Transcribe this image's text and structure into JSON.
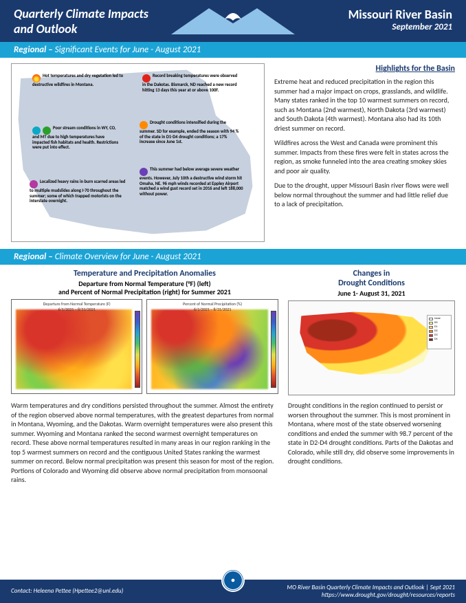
{
  "header": {
    "title_left_l1": "Quarterly Climate Impacts",
    "title_left_l2": "and Outlook",
    "title_right": "Missouri River Basin",
    "date": "September 2021"
  },
  "section1": {
    "label_bold": "Regional –",
    "label_rest": " Significant Events for June - August 2021"
  },
  "callouts": {
    "c1": "Hot temperatures and dry vegetation led to destructive wildfires in Montana.",
    "c2": "Record breaking temperatures were observed in the Dakotas. Bismarck, ND reached a new record hitting 13 days this year at or above 100F.",
    "c3": "Poor stream conditions in WY, CO, and MT due to high temperatures have impacted fish habitats and health. Restrictions were put into effect.",
    "c4": "Drought conditions intensified during the summer. SD for example, ended the season with 94 % of the state in D1-D4 drought conditions; a 17% increase since June 1st.",
    "c5": "Localized heavy rains in burn scarred areas led to multiple mudslides along I-70 throughout the summer; some of which trapped motorists on the interstate overnight.",
    "c6": "This summer had below average severe weather events. However, July 10th a destructive wind storm hit Omaha, NE. 96 mph winds recorded at Eppley Airport matched a wind gust record set in 2016 and left 188,000 without power."
  },
  "highlights": {
    "title": "Highlights for the Basin",
    "p1": "Extreme heat and reduced precipitation in the region this summer had a major impact on crops, grasslands, and wildlife. Many states ranked in the top 10 warmest summers on record, such as Montana (2nd warmest), North Dakota (3rd warmest) and South Dakota (4th warmest). Montana also had its 10th driest summer on record.",
    "p2": "Wildfires across the West and Canada were prominent this summer. Impacts from these fires were felt in states across the region, as smoke funneled into the area creating smokey skies and poor air quality.",
    "p3": "Due to the drought, upper Missouri Basin river flows were well below normal throughout the summer and had little relief due to a lack of precipitation."
  },
  "section2": {
    "label_bold": "Regional –",
    "label_rest": " Climate Overview for June - August 2021"
  },
  "overview": {
    "anom_title": "Temperature and Precipitation Anomalies",
    "anom_sub": "Departure from Normal Temperature (°F) (left)\nand Percent of Normal Precipitation (right) for Summer 2021",
    "map_temp_title": "Departure from Normal Temperature (F)\n6/1/2021 – 8/31/2021",
    "map_precip_title": "Percent of Normal Precipitation (%)\n6/1/2021 – 8/31/2021",
    "drought_title": "Changes in\nDrought Conditions",
    "drought_sub": "June 1- August 31, 2021",
    "text_left": "Warm temperatures and dry conditions persisted throughout the summer. Almost the entirety of the region observed above normal temperatures, with the greatest departures from normal in Montana, Wyoming, and the Dakotas. Warm overnight temperatures were also present this summer. Wyoming and Montana ranked the second warmest overnight temperatures on record. These above normal temperatures resulted in many areas in our region ranking in the top 5 warmest summers on record and the contiguous United States ranking the warmest summer on record. Below normal precipitation was present this season for most of the region. Portions of Colorado and Wyoming did observe above normal precipitation from monsoonal rains.",
    "text_right": "Drought conditions in the region continued to persist or worsen throughout the summer. This is most prominent in Montana, where most of the state observed worsening conditions and ended the summer with 98.7 percent of the state in D2-D4 drought conditions. Parts of the Dakotas and Colorado, while still dry, did observe some improvements in drought conditions."
  },
  "drought_legend": [
    "None",
    "D0",
    "D1",
    "D2",
    "D3",
    "D4"
  ],
  "drought_legend_colors": [
    "#ffffff",
    "#ffff8a",
    "#ffd27a",
    "#ff8a1a",
    "#d8342a",
    "#8a1a10"
  ],
  "footer": {
    "contact": "Contact:  Heleena Pettee  (Hpettee2@unl.edu)",
    "line1": "MO River Basin Quarterly Climate Impacts and Outlook | Sept 2021",
    "line2": "https://www.drought.gov/drought/resources/reports"
  }
}
